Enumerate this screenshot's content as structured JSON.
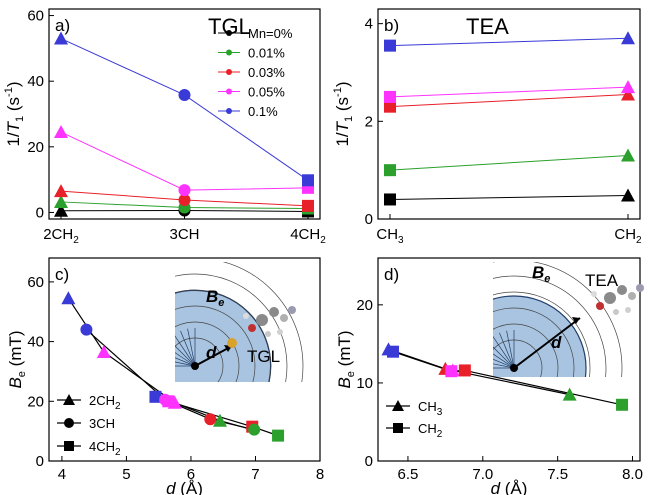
{
  "colors": {
    "c0": "#000000",
    "c001": "#2ca02c",
    "c003": "#e8202a",
    "c005": "#ff33ff",
    "c01": "#3a3ad6",
    "disk": "#a9c4e0",
    "triangle_series": "#000000"
  },
  "chart_data": [
    {
      "id": "a",
      "type": "line",
      "panel_label": "a)",
      "title": "TGL",
      "ylabel": "1/T1 (s-1)",
      "ylabel_parts": [
        "1/",
        "T",
        "1",
        " (s",
        "-1",
        ")"
      ],
      "categories": [
        "2CH2",
        "3CH",
        "4CH2"
      ],
      "category_parts": [
        [
          "2CH",
          "2"
        ],
        [
          "3CH",
          ""
        ],
        [
          "4CH",
          "2"
        ]
      ],
      "marker_by_category": [
        "triangle",
        "circle",
        "square"
      ],
      "ylim": [
        -2,
        62
      ],
      "yticks": [
        0,
        20,
        40,
        60
      ],
      "legend_position": "top-right",
      "series": [
        {
          "name": "Mn=0%",
          "color": "c0",
          "values": [
            0.5,
            0.6,
            0.3
          ]
        },
        {
          "name": "0.01%",
          "color": "c001",
          "values": [
            3.2,
            1.5,
            1.2
          ]
        },
        {
          "name": "0.03%",
          "color": "c003",
          "values": [
            6.5,
            3.8,
            2.0
          ]
        },
        {
          "name": "0.05%",
          "color": "c005",
          "values": [
            24.5,
            6.8,
            7.5
          ]
        },
        {
          "name": "0.1%",
          "color": "c01",
          "values": [
            53,
            35.8,
            9.8
          ]
        }
      ]
    },
    {
      "id": "b",
      "type": "line",
      "panel_label": "b)",
      "title": "TEA",
      "ylabel": "1/T1 (s-1)",
      "ylabel_parts": [
        "1/",
        "T",
        "1",
        " (s",
        "-1",
        ")"
      ],
      "categories": [
        "CH3",
        "CH2"
      ],
      "category_parts": [
        [
          "CH",
          "3"
        ],
        [
          "CH",
          "2"
        ]
      ],
      "marker_by_category": [
        "square",
        "triangle"
      ],
      "ylim": [
        0,
        4.3
      ],
      "yticks": [
        0,
        2,
        4
      ],
      "series": [
        {
          "name": "Mn=0%",
          "color": "c0",
          "values": [
            0.4,
            0.48
          ]
        },
        {
          "name": "0.01%",
          "color": "c001",
          "values": [
            1.0,
            1.3
          ]
        },
        {
          "name": "0.03%",
          "color": "c003",
          "values": [
            2.3,
            2.55
          ]
        },
        {
          "name": "0.05%",
          "color": "c005",
          "values": [
            2.5,
            2.7
          ]
        },
        {
          "name": "0.1%",
          "color": "c01",
          "values": [
            3.55,
            3.7
          ]
        }
      ]
    },
    {
      "id": "c",
      "type": "scatter",
      "panel_label": "c)",
      "xlabel": "d (Å)",
      "xlabel_parts": [
        "d",
        " (Å)"
      ],
      "ylabel": "Be (mT)",
      "ylabel_parts": [
        "B",
        "e",
        " (mT)"
      ],
      "xlim": [
        3.8,
        8.0
      ],
      "xticks": [
        4,
        5,
        6,
        7,
        8
      ],
      "ylim": [
        0,
        68
      ],
      "yticks": [
        0,
        20,
        40,
        60
      ],
      "inset_label": "TGL",
      "field_label": "Be",
      "distance_label": "d",
      "legend_position": "bottom-left",
      "legend": [
        {
          "marker": "triangle",
          "label_parts": [
            "2CH",
            "2"
          ]
        },
        {
          "marker": "circle",
          "label_parts": [
            "3CH",
            ""
          ]
        },
        {
          "marker": "square",
          "label_parts": [
            "4CH",
            "2"
          ]
        }
      ],
      "curves": [
        {
          "marker": "triangle",
          "x": [
            4.1,
            4.65,
            5.75,
            6.45,
            6.95
          ],
          "y": [
            54.5,
            36.5,
            19.5,
            13.5,
            10.5
          ]
        },
        {
          "marker": "circle",
          "x": [
            4.38,
            5.6,
            6.3,
            6.98
          ],
          "y": [
            44.0,
            20.5,
            14.0,
            10.5
          ]
        },
        {
          "marker": "square",
          "x": [
            5.45,
            5.65,
            6.95,
            7.35
          ],
          "y": [
            21.5,
            20.0,
            11.5,
            8.5
          ]
        }
      ],
      "points": [
        {
          "x": 4.1,
          "y": 54.5,
          "marker": "triangle",
          "color": "c01"
        },
        {
          "x": 4.65,
          "y": 36.5,
          "marker": "triangle",
          "color": "c005"
        },
        {
          "x": 4.38,
          "y": 44.0,
          "marker": "circle",
          "color": "c01"
        },
        {
          "x": 5.45,
          "y": 21.5,
          "marker": "square",
          "color": "c01"
        },
        {
          "x": 5.65,
          "y": 20.0,
          "marker": "square",
          "color": "c005"
        },
        {
          "x": 5.6,
          "y": 20.5,
          "marker": "circle",
          "color": "c005"
        },
        {
          "x": 5.75,
          "y": 19.5,
          "marker": "triangle",
          "color": "c005"
        },
        {
          "x": 6.3,
          "y": 14.0,
          "marker": "circle",
          "color": "c003"
        },
        {
          "x": 6.45,
          "y": 13.5,
          "marker": "triangle",
          "color": "c001"
        },
        {
          "x": 6.95,
          "y": 11.5,
          "marker": "square",
          "color": "c003"
        },
        {
          "x": 6.98,
          "y": 10.5,
          "marker": "circle",
          "color": "c001"
        },
        {
          "x": 7.35,
          "y": 8.5,
          "marker": "square",
          "color": "c001"
        }
      ]
    },
    {
      "id": "d",
      "type": "scatter",
      "panel_label": "d)",
      "xlabel": "d (Å)",
      "xlabel_parts": [
        "d",
        " (Å)"
      ],
      "ylabel": "Be (mT)",
      "ylabel_parts": [
        "B",
        "e",
        " (mT)"
      ],
      "xlim": [
        6.3,
        8.05
      ],
      "xticks": [
        6.5,
        7.0,
        7.5,
        8.0
      ],
      "xtick_labels": [
        "6.5",
        "7.0",
        "7.5",
        "8.0"
      ],
      "ylim": [
        0,
        26
      ],
      "yticks": [
        0,
        10,
        20
      ],
      "inset_label": "TEA",
      "field_label": "Be",
      "distance_label": "d",
      "legend_position": "bottom-left",
      "legend": [
        {
          "marker": "triangle",
          "label_parts": [
            "CH",
            "3"
          ]
        },
        {
          "marker": "square",
          "label_parts": [
            "CH",
            "2"
          ]
        }
      ],
      "curves": [
        {
          "marker": "triangle",
          "x": [
            6.37,
            6.75,
            6.8,
            7.58
          ],
          "y": [
            14.3,
            11.8,
            11.6,
            8.5
          ]
        },
        {
          "marker": "square",
          "x": [
            6.4,
            6.79,
            6.88,
            7.93
          ],
          "y": [
            14.0,
            11.5,
            11.6,
            7.2
          ]
        }
      ],
      "points": [
        {
          "x": 6.37,
          "y": 14.3,
          "marker": "triangle",
          "color": "c01"
        },
        {
          "x": 6.4,
          "y": 14.0,
          "marker": "square",
          "color": "c01"
        },
        {
          "x": 6.75,
          "y": 11.8,
          "marker": "triangle",
          "color": "c003"
        },
        {
          "x": 6.79,
          "y": 11.5,
          "marker": "square",
          "color": "c005"
        },
        {
          "x": 6.8,
          "y": 11.6,
          "marker": "triangle",
          "color": "c005"
        },
        {
          "x": 6.88,
          "y": 11.6,
          "marker": "square",
          "color": "c003"
        },
        {
          "x": 7.58,
          "y": 8.5,
          "marker": "triangle",
          "color": "c001"
        },
        {
          "x": 7.93,
          "y": 7.2,
          "marker": "square",
          "color": "c001"
        }
      ]
    }
  ]
}
